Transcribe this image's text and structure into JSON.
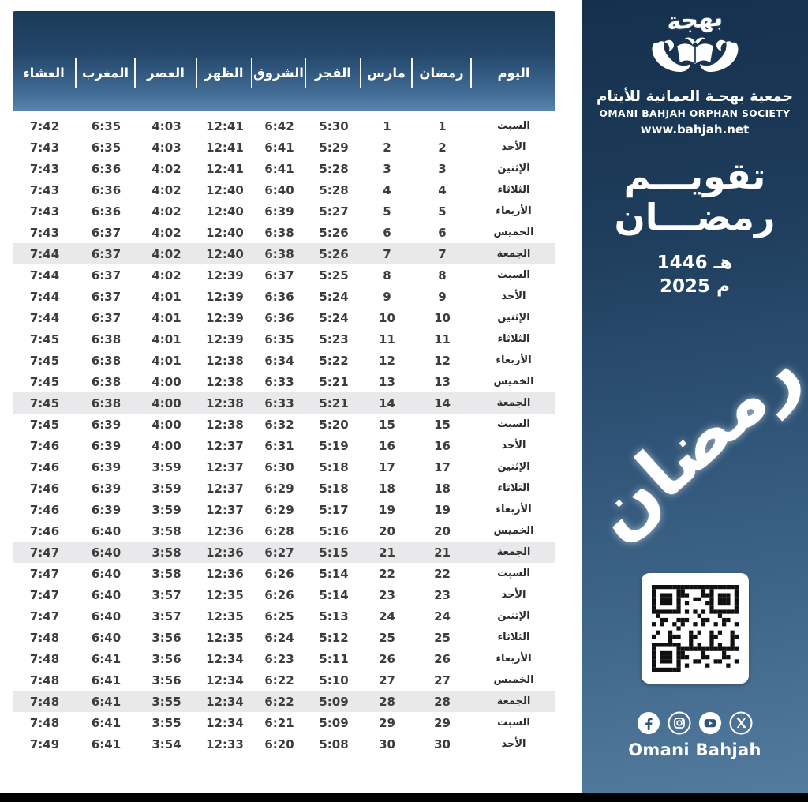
{
  "colors": {
    "panel_navy_top": "#14304d",
    "panel_navy_bottom": "#537b9e",
    "header_band_top": "#1b3a59",
    "header_band_bottom": "#5b86ac",
    "friday_highlight": "#e9e9eb",
    "table_text": "#3d3d3d",
    "black_bar": "#000000",
    "white": "#ffffff"
  },
  "panel": {
    "logo_word": "بهجة",
    "org_name_ar": "جمعية بهجـة العمانية للأيتام",
    "org_name_en": "OMANI BAHJAH ORPHAN SOCIETY",
    "website": "www.bahjah.net",
    "title_line1": "تقويـــم",
    "title_line2": "رمضـــان",
    "year_hijri": "1446 هـ",
    "year_gregorian": "2025 م",
    "calligraphy_word": "رمضان",
    "footer_name": "Omani Bahjah",
    "social": [
      "facebook",
      "instagram",
      "youtube",
      "x"
    ]
  },
  "table": {
    "columns": [
      "اليوم",
      "رمضان",
      "مارس",
      "الفجر",
      "الشروق",
      "الظهر",
      "العصر",
      "المغرب",
      "العشاء"
    ],
    "column_keys": [
      "day",
      "ramadan",
      "march",
      "fajr",
      "shurooq",
      "dhuhr",
      "asr",
      "maghrib",
      "isha"
    ],
    "highlight_day": "الجمعة",
    "rows": [
      {
        "day": "السبت",
        "ramadan": "1",
        "march": "1",
        "fajr": "5:30",
        "shurooq": "6:42",
        "dhuhr": "12:41",
        "asr": "4:03",
        "maghrib": "6:35",
        "isha": "7:42"
      },
      {
        "day": "الأحد",
        "ramadan": "2",
        "march": "2",
        "fajr": "5:29",
        "shurooq": "6:41",
        "dhuhr": "12:41",
        "asr": "4:03",
        "maghrib": "6:35",
        "isha": "7:43"
      },
      {
        "day": "الإثنين",
        "ramadan": "3",
        "march": "3",
        "fajr": "5:28",
        "shurooq": "6:41",
        "dhuhr": "12:41",
        "asr": "4:02",
        "maghrib": "6:36",
        "isha": "7:43"
      },
      {
        "day": "الثلاثاء",
        "ramadan": "4",
        "march": "4",
        "fajr": "5:28",
        "shurooq": "6:40",
        "dhuhr": "12:40",
        "asr": "4:02",
        "maghrib": "6:36",
        "isha": "7:43"
      },
      {
        "day": "الأربعاء",
        "ramadan": "5",
        "march": "5",
        "fajr": "5:27",
        "shurooq": "6:39",
        "dhuhr": "12:40",
        "asr": "4:02",
        "maghrib": "6:36",
        "isha": "7:43"
      },
      {
        "day": "الخميس",
        "ramadan": "6",
        "march": "6",
        "fajr": "5:26",
        "shurooq": "6:38",
        "dhuhr": "12:40",
        "asr": "4:02",
        "maghrib": "6:37",
        "isha": "7:43"
      },
      {
        "day": "الجمعة",
        "ramadan": "7",
        "march": "7",
        "fajr": "5:26",
        "shurooq": "6:38",
        "dhuhr": "12:40",
        "asr": "4:02",
        "maghrib": "6:37",
        "isha": "7:44"
      },
      {
        "day": "السبت",
        "ramadan": "8",
        "march": "8",
        "fajr": "5:25",
        "shurooq": "6:37",
        "dhuhr": "12:39",
        "asr": "4:02",
        "maghrib": "6:37",
        "isha": "7:44"
      },
      {
        "day": "الأحد",
        "ramadan": "9",
        "march": "9",
        "fajr": "5:24",
        "shurooq": "6:36",
        "dhuhr": "12:39",
        "asr": "4:01",
        "maghrib": "6:37",
        "isha": "7:44"
      },
      {
        "day": "الإثنين",
        "ramadan": "10",
        "march": "10",
        "fajr": "5:24",
        "shurooq": "6:36",
        "dhuhr": "12:39",
        "asr": "4:01",
        "maghrib": "6:37",
        "isha": "7:44"
      },
      {
        "day": "الثلاثاء",
        "ramadan": "11",
        "march": "11",
        "fajr": "5:23",
        "shurooq": "6:35",
        "dhuhr": "12:39",
        "asr": "4:01",
        "maghrib": "6:38",
        "isha": "7:45"
      },
      {
        "day": "الأربعاء",
        "ramadan": "12",
        "march": "12",
        "fajr": "5:22",
        "shurooq": "6:34",
        "dhuhr": "12:38",
        "asr": "4:01",
        "maghrib": "6:38",
        "isha": "7:45"
      },
      {
        "day": "الخميس",
        "ramadan": "13",
        "march": "13",
        "fajr": "5:21",
        "shurooq": "6:33",
        "dhuhr": "12:38",
        "asr": "4:00",
        "maghrib": "6:38",
        "isha": "7:45"
      },
      {
        "day": "الجمعة",
        "ramadan": "14",
        "march": "14",
        "fajr": "5:21",
        "shurooq": "6:33",
        "dhuhr": "12:38",
        "asr": "4:00",
        "maghrib": "6:38",
        "isha": "7:45"
      },
      {
        "day": "السبت",
        "ramadan": "15",
        "march": "15",
        "fajr": "5:20",
        "shurooq": "6:32",
        "dhuhr": "12:38",
        "asr": "4:00",
        "maghrib": "6:39",
        "isha": "7:45"
      },
      {
        "day": "الأحد",
        "ramadan": "16",
        "march": "16",
        "fajr": "5:19",
        "shurooq": "6:31",
        "dhuhr": "12:37",
        "asr": "4:00",
        "maghrib": "6:39",
        "isha": "7:46"
      },
      {
        "day": "الإثنين",
        "ramadan": "17",
        "march": "17",
        "fajr": "5:18",
        "shurooq": "6:30",
        "dhuhr": "12:37",
        "asr": "3:59",
        "maghrib": "6:39",
        "isha": "7:46"
      },
      {
        "day": "الثلاثاء",
        "ramadan": "18",
        "march": "18",
        "fajr": "5:18",
        "shurooq": "6:29",
        "dhuhr": "12:37",
        "asr": "3:59",
        "maghrib": "6:39",
        "isha": "7:46"
      },
      {
        "day": "الأربعاء",
        "ramadan": "19",
        "march": "19",
        "fajr": "5:17",
        "shurooq": "6:29",
        "dhuhr": "12:37",
        "asr": "3:59",
        "maghrib": "6:39",
        "isha": "7:46"
      },
      {
        "day": "الخميس",
        "ramadan": "20",
        "march": "20",
        "fajr": "5:16",
        "shurooq": "6:28",
        "dhuhr": "12:36",
        "asr": "3:58",
        "maghrib": "6:40",
        "isha": "7:46"
      },
      {
        "day": "الجمعة",
        "ramadan": "21",
        "march": "21",
        "fajr": "5:15",
        "shurooq": "6:27",
        "dhuhr": "12:36",
        "asr": "3:58",
        "maghrib": "6:40",
        "isha": "7:47"
      },
      {
        "day": "السبت",
        "ramadan": "22",
        "march": "22",
        "fajr": "5:14",
        "shurooq": "6:26",
        "dhuhr": "12:36",
        "asr": "3:58",
        "maghrib": "6:40",
        "isha": "7:47"
      },
      {
        "day": "الأحد",
        "ramadan": "23",
        "march": "23",
        "fajr": "5:14",
        "shurooq": "6:26",
        "dhuhr": "12:35",
        "asr": "3:57",
        "maghrib": "6:40",
        "isha": "7:47"
      },
      {
        "day": "الإثنين",
        "ramadan": "24",
        "march": "24",
        "fajr": "5:13",
        "shurooq": "6:25",
        "dhuhr": "12:35",
        "asr": "3:57",
        "maghrib": "6:40",
        "isha": "7:47"
      },
      {
        "day": "الثلاثاء",
        "ramadan": "25",
        "march": "25",
        "fajr": "5:12",
        "shurooq": "6:24",
        "dhuhr": "12:35",
        "asr": "3:56",
        "maghrib": "6:40",
        "isha": "7:48"
      },
      {
        "day": "الأربعاء",
        "ramadan": "26",
        "march": "26",
        "fajr": "5:11",
        "shurooq": "6:23",
        "dhuhr": "12:34",
        "asr": "3:56",
        "maghrib": "6:41",
        "isha": "7:48"
      },
      {
        "day": "الخميس",
        "ramadan": "27",
        "march": "27",
        "fajr": "5:10",
        "shurooq": "6:22",
        "dhuhr": "12:34",
        "asr": "3:56",
        "maghrib": "6:41",
        "isha": "7:48"
      },
      {
        "day": "الجمعة",
        "ramadan": "28",
        "march": "28",
        "fajr": "5:09",
        "shurooq": "6:22",
        "dhuhr": "12:34",
        "asr": "3:55",
        "maghrib": "6:41",
        "isha": "7:48"
      },
      {
        "day": "السبت",
        "ramadan": "29",
        "march": "29",
        "fajr": "5:09",
        "shurooq": "6:21",
        "dhuhr": "12:34",
        "asr": "3:55",
        "maghrib": "6:41",
        "isha": "7:48"
      },
      {
        "day": "الأحد",
        "ramadan": "30",
        "march": "30",
        "fajr": "5:08",
        "shurooq": "6:20",
        "dhuhr": "12:33",
        "asr": "3:54",
        "maghrib": "6:41",
        "isha": "7:49"
      }
    ]
  }
}
